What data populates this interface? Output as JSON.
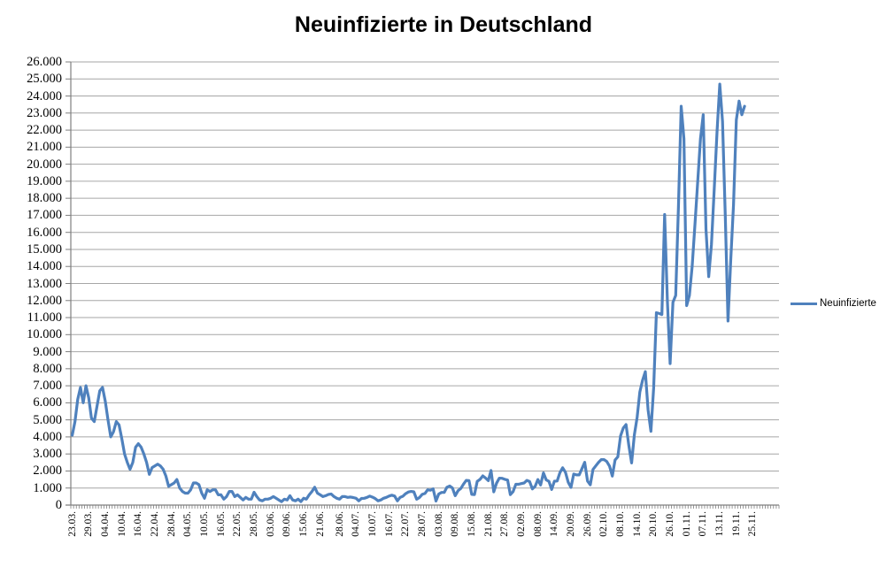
{
  "title": "Neuinfizierte in Deutschland",
  "legend": {
    "label": "Neuinfizierte"
  },
  "colors": {
    "line": "#4F81BD",
    "grid": "#A6A6A6",
    "axis": "#7F7F7F",
    "text": "#000000",
    "background": "#FFFFFF"
  },
  "y_axis": {
    "min": 0,
    "max": 26000,
    "step": 1000,
    "tick_labels": [
      "26.000",
      "25.000",
      "24.000",
      "23.000",
      "22.000",
      "21.000",
      "20.000",
      "19.000",
      "18.000",
      "17.000",
      "16.000",
      "15.000",
      "14.000",
      "13.000",
      "12.000",
      "11.000",
      "10.000",
      "9.000",
      "8.000",
      "7.000",
      "6.000",
      "5.000",
      "4.000",
      "3.000",
      "2.000",
      "1.000",
      "0"
    ]
  },
  "x_axis": {
    "tick_labels": [
      "23.03.",
      "29.03.",
      "04.04.",
      "10.04.",
      "16.04.",
      "22.04.",
      "28.04.",
      "04.05.",
      "10.05.",
      "16.05.",
      "22.05.",
      "28.05.",
      "03.06.",
      "09.06.",
      "15.06.",
      "21.06.",
      "28.06.",
      "04.07.",
      "10.07.",
      "16.07.",
      "22.07.",
      "28.07.",
      "03.08.",
      "09.08.",
      "15.08.",
      "21.08.",
      "27.08.",
      "02.09.",
      "08.09.",
      "14.09.",
      "20.09.",
      "26.09.",
      "02.10.",
      "08.10.",
      "14.10.",
      "20.10.",
      "26.10.",
      "01.11.",
      "07.11.",
      "13.11.",
      "19.11.",
      "25.11."
    ],
    "label_interval_days": 6
  },
  "chart_data": {
    "type": "line",
    "title": "Neuinfizierte in Deutschland",
    "xlabel": "",
    "ylabel": "",
    "ylim": [
      0,
      26000
    ],
    "grid": "horizontal",
    "legend_position": "right",
    "x_start_date": "23.03.",
    "x_axis_end_date": "25.11.",
    "points_cadence": "daily",
    "axis_total_days": 257,
    "x_tick_labels": [
      "23.03.",
      "29.03.",
      "04.04.",
      "10.04.",
      "16.04.",
      "22.04.",
      "28.04.",
      "04.05.",
      "10.05.",
      "16.05.",
      "22.05.",
      "28.05.",
      "03.06.",
      "09.06.",
      "15.06.",
      "21.06.",
      "28.06.",
      "04.07.",
      "10.07.",
      "16.07.",
      "22.07.",
      "28.07.",
      "03.08.",
      "09.08.",
      "15.08.",
      "21.08.",
      "27.08.",
      "02.09.",
      "08.09.",
      "14.09.",
      "20.09.",
      "26.09.",
      "02.10.",
      "08.10.",
      "14.10.",
      "20.10.",
      "26.10.",
      "01.11.",
      "07.11.",
      "13.11.",
      "19.11.",
      "25.11."
    ],
    "series": [
      {
        "name": "Neuinfizierte",
        "color": "#4F81BD",
        "values": [
          4100,
          4900,
          6200,
          6900,
          6000,
          7000,
          6300,
          5100,
          4900,
          5800,
          6700,
          6900,
          6100,
          5000,
          4000,
          4300,
          4900,
          4700,
          3900,
          3000,
          2500,
          2100,
          2500,
          3400,
          3600,
          3400,
          3000,
          2500,
          1800,
          2200,
          2300,
          2400,
          2300,
          2100,
          1700,
          1100,
          1200,
          1300,
          1500,
          1000,
          800,
          700,
          700,
          900,
          1300,
          1300,
          1200,
          700,
          400,
          900,
          800,
          900,
          900,
          600,
          600,
          350,
          500,
          800,
          800,
          500,
          600,
          450,
          300,
          450,
          350,
          350,
          750,
          500,
          300,
          250,
          350,
          350,
          400,
          500,
          400,
          300,
          200,
          350,
          300,
          550,
          300,
          250,
          350,
          200,
          400,
          350,
          600,
          800,
          1050,
          700,
          600,
          500,
          550,
          630,
          650,
          500,
          400,
          350,
          500,
          500,
          450,
          470,
          440,
          400,
          250,
          390,
          400,
          450,
          530,
          460,
          380,
          250,
          300,
          400,
          450,
          530,
          580,
          530,
          250,
          450,
          520,
          670,
          770,
          800,
          780,
          340,
          440,
          630,
          680,
          900,
          870,
          950,
          240,
          650,
          740,
          740,
          1050,
          1120,
          1000,
          550,
          840,
          970,
          1230,
          1450,
          1440,
          630,
          620,
          1390,
          1510,
          1710,
          1590,
          1430,
          2030,
          780,
          1280,
          1580,
          1570,
          1510,
          1470,
          610,
          790,
          1220,
          1220,
          1260,
          1300,
          1450,
          1380,
          950,
          1100,
          1500,
          1180,
          1890,
          1480,
          1390,
          920,
          1400,
          1410,
          1900,
          2190,
          1920,
          1340,
          1040,
          1820,
          1770,
          1770,
          2140,
          2510,
          1410,
          1190,
          2090,
          2300,
          2500,
          2670,
          2670,
          2560,
          2280,
          1700,
          2640,
          2830,
          4060,
          4520,
          4720,
          3480,
          2470,
          4120,
          5130,
          6640,
          7330,
          7830,
          5590,
          4330,
          6870,
          11290,
          11240,
          11180,
          17050,
          12000,
          8300,
          11900,
          12300,
          17500,
          23400,
          21500,
          11700,
          12300,
          14000,
          16500,
          19000,
          21500,
          22900,
          16200,
          13400,
          15300,
          18500,
          21900,
          24700,
          22500,
          17000,
          10800,
          14400,
          17600,
          22600,
          23700,
          22900,
          23400
        ]
      }
    ]
  }
}
